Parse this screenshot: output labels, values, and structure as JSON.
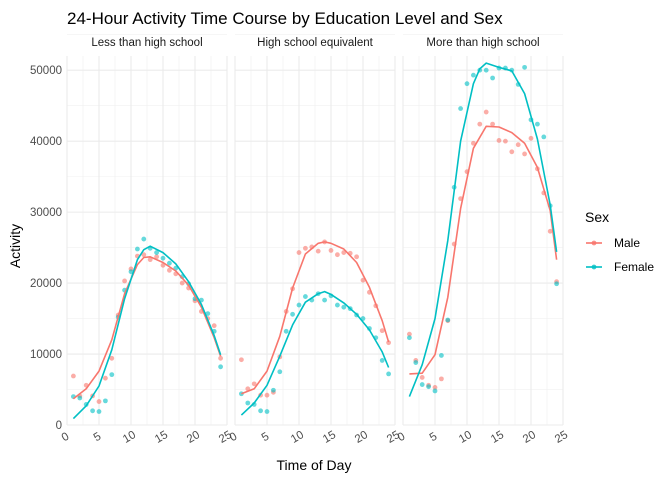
{
  "chart_data": {
    "type": "scatter",
    "title": "24-Hour Activity Time Course by Education Level and Sex",
    "xlabel": "Time of Day",
    "ylabel": "Activity",
    "xlim": [
      0,
      25
    ],
    "ylim": [
      0,
      52000
    ],
    "x_ticks": [
      "0",
      "5",
      "10",
      "15",
      "20",
      "25"
    ],
    "y_ticks": [
      "0",
      "10000",
      "20000",
      "30000",
      "40000",
      "50000"
    ],
    "grid": true,
    "legend": {
      "title": "Sex",
      "placement": "right"
    },
    "facets": [
      "Less than high school",
      "High school equivalent",
      "More than high school"
    ],
    "series": [
      {
        "name": "Male",
        "color": "#F8766D"
      },
      {
        "name": "Female",
        "color": "#00BFC4"
      }
    ],
    "points": {
      "Less than high school": {
        "Male": [
          [
            1,
            6900
          ],
          [
            2,
            4100
          ],
          [
            3,
            5600
          ],
          [
            4,
            4100
          ],
          [
            5,
            3300
          ],
          [
            6,
            6600
          ],
          [
            7,
            9400
          ],
          [
            8,
            15500
          ],
          [
            9,
            20300
          ],
          [
            10,
            22000
          ],
          [
            11,
            23800
          ],
          [
            12,
            24000
          ],
          [
            13,
            23300
          ],
          [
            14,
            23700
          ],
          [
            15,
            22500
          ],
          [
            16,
            21800
          ],
          [
            17,
            21300
          ],
          [
            18,
            20000
          ],
          [
            19,
            19300
          ],
          [
            20,
            17500
          ],
          [
            21,
            16000
          ],
          [
            22,
            15000
          ],
          [
            23,
            14000
          ],
          [
            24,
            9400
          ]
        ],
        "Female": [
          [
            1,
            4000
          ],
          [
            2,
            3800
          ],
          [
            3,
            2900
          ],
          [
            4,
            2000
          ],
          [
            5,
            1900
          ],
          [
            6,
            3400
          ],
          [
            7,
            7100
          ],
          [
            8,
            15200
          ],
          [
            9,
            19000
          ],
          [
            10,
            21600
          ],
          [
            11,
            24800
          ],
          [
            12,
            26200
          ],
          [
            13,
            24900
          ],
          [
            14,
            24300
          ],
          [
            15,
            23500
          ],
          [
            16,
            22800
          ],
          [
            17,
            22100
          ],
          [
            18,
            20900
          ],
          [
            19,
            19900
          ],
          [
            20,
            17800
          ],
          [
            21,
            17600
          ],
          [
            22,
            15700
          ],
          [
            23,
            13200
          ],
          [
            24,
            8200
          ]
        ]
      },
      "High school equivalent": {
        "Male": [
          [
            1,
            9200
          ],
          [
            2,
            5100
          ],
          [
            3,
            5800
          ],
          [
            4,
            4200
          ],
          [
            5,
            4200
          ],
          [
            6,
            4600
          ],
          [
            7,
            9600
          ],
          [
            8,
            16000
          ],
          [
            9,
            19200
          ],
          [
            10,
            24300
          ],
          [
            11,
            24900
          ],
          [
            12,
            25100
          ],
          [
            13,
            24500
          ],
          [
            14,
            25800
          ],
          [
            15,
            24600
          ],
          [
            16,
            24000
          ],
          [
            17,
            24300
          ],
          [
            18,
            24200
          ],
          [
            19,
            23700
          ],
          [
            20,
            20400
          ],
          [
            21,
            18700
          ],
          [
            22,
            16800
          ],
          [
            23,
            13300
          ],
          [
            24,
            11600
          ]
        ],
        "Female": [
          [
            1,
            4400
          ],
          [
            2,
            3100
          ],
          [
            3,
            2900
          ],
          [
            4,
            2000
          ],
          [
            5,
            1900
          ],
          [
            6,
            4900
          ],
          [
            7,
            7500
          ],
          [
            8,
            13200
          ],
          [
            9,
            15600
          ],
          [
            10,
            16900
          ],
          [
            11,
            18100
          ],
          [
            12,
            17600
          ],
          [
            13,
            18500
          ],
          [
            14,
            17600
          ],
          [
            15,
            18200
          ],
          [
            16,
            16900
          ],
          [
            17,
            16600
          ],
          [
            18,
            16400
          ],
          [
            19,
            15500
          ],
          [
            20,
            15000
          ],
          [
            21,
            13600
          ],
          [
            22,
            12300
          ],
          [
            23,
            9100
          ],
          [
            24,
            7200
          ]
        ]
      },
      "More than high school": {
        "Male": [
          [
            1,
            12800
          ],
          [
            2,
            9100
          ],
          [
            3,
            6700
          ],
          [
            4,
            5600
          ],
          [
            5,
            5300
          ],
          [
            6,
            6500
          ],
          [
            7,
            14700
          ],
          [
            8,
            25500
          ],
          [
            9,
            31900
          ],
          [
            10,
            35700
          ],
          [
            11,
            39700
          ],
          [
            12,
            42400
          ],
          [
            13,
            44100
          ],
          [
            14,
            42400
          ],
          [
            15,
            40100
          ],
          [
            16,
            40000
          ],
          [
            17,
            38500
          ],
          [
            18,
            39500
          ],
          [
            19,
            38200
          ],
          [
            20,
            40400
          ],
          [
            21,
            36100
          ],
          [
            22,
            32700
          ],
          [
            23,
            27300
          ],
          [
            24,
            20200
          ]
        ],
        "Female": [
          [
            1,
            12300
          ],
          [
            2,
            8800
          ],
          [
            3,
            5700
          ],
          [
            4,
            5400
          ],
          [
            5,
            4800
          ],
          [
            6,
            9800
          ],
          [
            7,
            14800
          ],
          [
            8,
            33500
          ],
          [
            9,
            44600
          ],
          [
            10,
            48100
          ],
          [
            11,
            49300
          ],
          [
            12,
            50000
          ],
          [
            13,
            50000
          ],
          [
            14,
            48900
          ],
          [
            15,
            50300
          ],
          [
            16,
            50300
          ],
          [
            17,
            50000
          ],
          [
            18,
            48000
          ],
          [
            19,
            50400
          ],
          [
            20,
            43000
          ],
          [
            21,
            42400
          ],
          [
            22,
            40600
          ],
          [
            23,
            30900
          ],
          [
            24,
            19900
          ]
        ]
      }
    },
    "smooth": {
      "Less than high school": {
        "Male": [
          [
            1,
            3700
          ],
          [
            3,
            5100
          ],
          [
            5,
            7600
          ],
          [
            7,
            12000
          ],
          [
            9,
            18500
          ],
          [
            11,
            22600
          ],
          [
            12,
            23600
          ],
          [
            13,
            23700
          ],
          [
            15,
            22900
          ],
          [
            17,
            21700
          ],
          [
            19,
            19700
          ],
          [
            21,
            16600
          ],
          [
            23,
            12300
          ],
          [
            24,
            9700
          ]
        ],
        "Female": [
          [
            1,
            900
          ],
          [
            3,
            2700
          ],
          [
            5,
            5500
          ],
          [
            7,
            10600
          ],
          [
            9,
            17800
          ],
          [
            11,
            23300
          ],
          [
            12,
            24700
          ],
          [
            13,
            25200
          ],
          [
            15,
            24300
          ],
          [
            17,
            22700
          ],
          [
            19,
            20200
          ],
          [
            21,
            17000
          ],
          [
            23,
            12600
          ],
          [
            24,
            9900
          ]
        ]
      },
      "High school equivalent": {
        "Male": [
          [
            1,
            4400
          ],
          [
            3,
            5100
          ],
          [
            5,
            7600
          ],
          [
            7,
            12500
          ],
          [
            9,
            19300
          ],
          [
            11,
            24100
          ],
          [
            13,
            25600
          ],
          [
            14,
            25800
          ],
          [
            15,
            25600
          ],
          [
            17,
            24800
          ],
          [
            19,
            22900
          ],
          [
            21,
            19400
          ],
          [
            23,
            14700
          ],
          [
            24,
            11700
          ]
        ],
        "Female": [
          [
            1,
            1400
          ],
          [
            3,
            3100
          ],
          [
            5,
            5600
          ],
          [
            7,
            9700
          ],
          [
            9,
            14100
          ],
          [
            11,
            17300
          ],
          [
            13,
            18500
          ],
          [
            14,
            18800
          ],
          [
            15,
            18400
          ],
          [
            17,
            17200
          ],
          [
            19,
            15600
          ],
          [
            21,
            13400
          ],
          [
            23,
            10300
          ],
          [
            24,
            8100
          ]
        ]
      },
      "More than high school": {
        "Male": [
          [
            1,
            7200
          ],
          [
            3,
            7300
          ],
          [
            5,
            9900
          ],
          [
            7,
            18000
          ],
          [
            9,
            30500
          ],
          [
            11,
            39000
          ],
          [
            13,
            42100
          ],
          [
            15,
            42000
          ],
          [
            17,
            41200
          ],
          [
            19,
            39700
          ],
          [
            21,
            36300
          ],
          [
            23,
            30200
          ],
          [
            24,
            23300
          ]
        ],
        "Female": [
          [
            1,
            4000
          ],
          [
            3,
            8500
          ],
          [
            5,
            15000
          ],
          [
            7,
            26000
          ],
          [
            9,
            40000
          ],
          [
            11,
            48100
          ],
          [
            12,
            50200
          ],
          [
            13,
            51000
          ],
          [
            15,
            50400
          ],
          [
            17,
            49900
          ],
          [
            19,
            46700
          ],
          [
            21,
            40300
          ],
          [
            23,
            31000
          ],
          [
            24,
            24400
          ]
        ]
      }
    }
  }
}
